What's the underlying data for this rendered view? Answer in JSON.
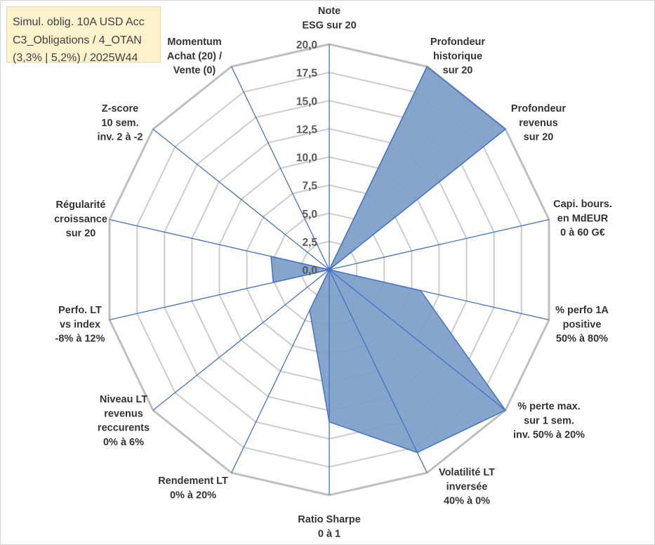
{
  "info_box": {
    "lines": [
      "Simul. oblig. 10A USD Acc",
      "C3_Obligations / 4_OTAN",
      "(3,3% | 5,2%) / 2025W44"
    ]
  },
  "colors": {
    "series_fill": "#7C9DC9",
    "series_stroke": "#4472C4",
    "axis": "#4472C4",
    "grid": "#BFBFBF",
    "info_box_background": "#FFF2CC"
  },
  "chart_data": {
    "type": "radar",
    "categories": [
      [
        "Note",
        "ESG sur 20"
      ],
      [
        "Profondeur",
        "historique",
        "sur 20"
      ],
      [
        "Profondeur",
        "revenus",
        "sur 20"
      ],
      [
        "Capi. bours.",
        "en MdEUR",
        "0 à 60 G€"
      ],
      [
        "% perfo 1A",
        "positive",
        "50% à 80%"
      ],
      [
        "% perte max.",
        "sur 1 sem.",
        "inv. 50% à 20%"
      ],
      [
        "Volatilité LT",
        "inversée",
        "40% à 0%"
      ],
      [
        "Ratio Sharpe",
        "0 à 1"
      ],
      [
        "Rendement LT",
        "0% à 20%"
      ],
      [
        "Niveau LT",
        "revenus",
        "reccurents",
        "0% à 6%"
      ],
      [
        "Perfo. LT",
        "vs index",
        "-8% à 12%"
      ],
      [
        "Régularité",
        "croissance",
        "sur 20"
      ],
      [
        "Z-score",
        "10 sem.",
        "inv. 2 à -2"
      ],
      [
        "Momentum",
        "Achat (20) /",
        "Vente (0)"
      ]
    ],
    "series": [
      {
        "values": [
          0,
          20,
          20,
          0,
          8.3,
          20,
          18,
          13.5,
          4,
          0,
          5.1,
          5.3,
          0,
          0
        ]
      }
    ],
    "r_ticks": [
      0,
      2.5,
      5,
      7.5,
      10,
      12.5,
      15,
      17.5,
      20
    ],
    "tick_labels": [
      "0,0",
      "2,5",
      "5,0",
      "7,5",
      "10,0",
      "12,5",
      "15,0",
      "17,5",
      "20,0"
    ],
    "rlim": [
      0,
      20
    ],
    "grid": true,
    "legend": "none"
  }
}
